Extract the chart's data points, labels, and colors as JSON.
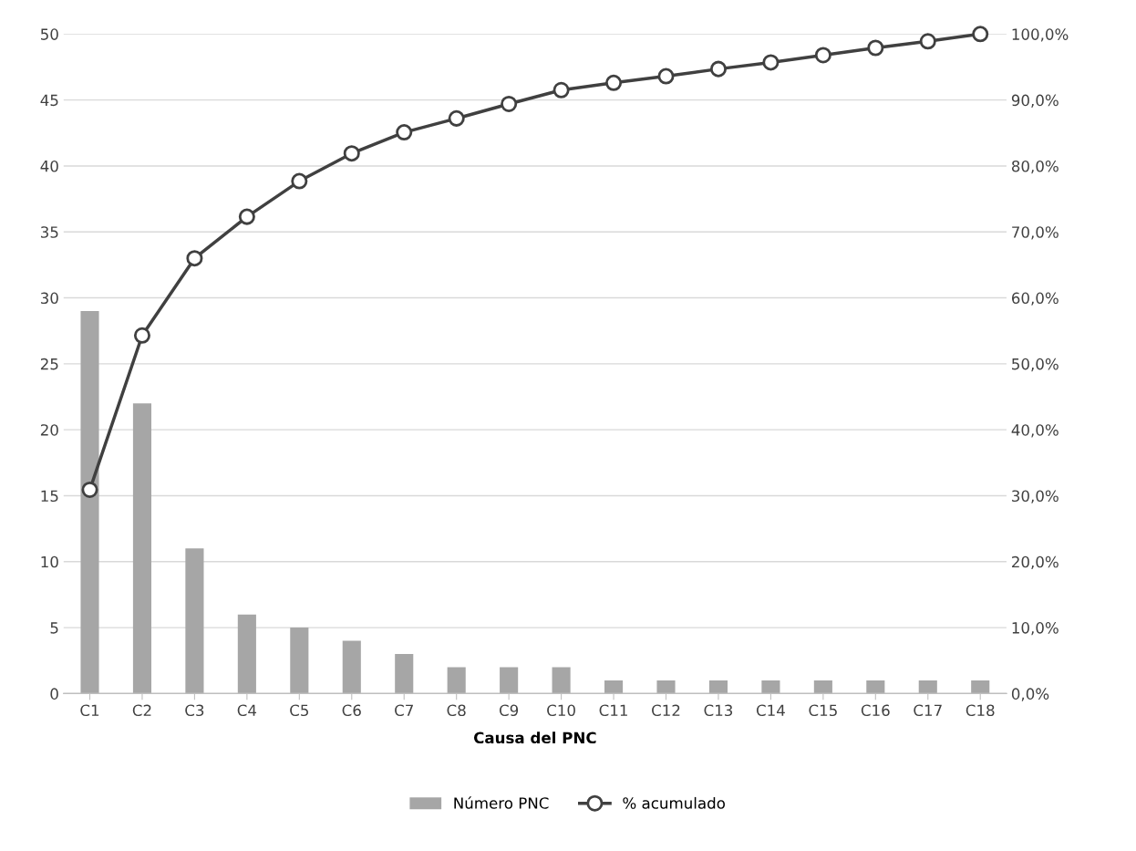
{
  "chart_data": {
    "type": "bar",
    "xlabel": "Causa del PNC",
    "categories": [
      "C1",
      "C2",
      "C3",
      "C4",
      "C5",
      "C6",
      "C7",
      "C8",
      "C9",
      "C10",
      "C11",
      "C12",
      "C13",
      "C14",
      "C15",
      "C16",
      "C17",
      "C18"
    ],
    "series": [
      {
        "name": "Número PNC",
        "color": "#a6a6a6",
        "values": [
          29,
          22,
          11,
          6,
          5,
          4,
          3,
          2,
          2,
          2,
          1,
          1,
          1,
          1,
          1,
          1,
          1,
          1
        ]
      },
      {
        "name": "% acumulado",
        "type": "line",
        "axis": "y2",
        "color": "#404040",
        "marker": "circle",
        "values": [
          30.9,
          54.3,
          66.0,
          72.3,
          77.7,
          81.9,
          85.1,
          87.2,
          89.4,
          91.5,
          92.6,
          93.6,
          94.7,
          95.7,
          96.8,
          97.9,
          98.9,
          100.0
        ]
      }
    ],
    "ylim": [
      0,
      50
    ],
    "yticks": [
      0,
      5,
      10,
      15,
      20,
      25,
      30,
      35,
      40,
      45,
      50
    ],
    "y2lim": [
      0,
      100
    ],
    "y2ticks": [
      {
        "value": 0,
        "label": "0,0%"
      },
      {
        "value": 10,
        "label": "10,0%"
      },
      {
        "value": 20,
        "label": "20,0%"
      },
      {
        "value": 30,
        "label": "30,0%"
      },
      {
        "value": 40,
        "label": "40,0%"
      },
      {
        "value": 50,
        "label": "50,0%"
      },
      {
        "value": 60,
        "label": "60,0%"
      },
      {
        "value": 70,
        "label": "70,0%"
      },
      {
        "value": 80,
        "label": "80,0%"
      },
      {
        "value": 90,
        "label": "90,0%"
      },
      {
        "value": 100,
        "label": "100,0%"
      }
    ],
    "grid": "y",
    "legend": "bottom"
  }
}
